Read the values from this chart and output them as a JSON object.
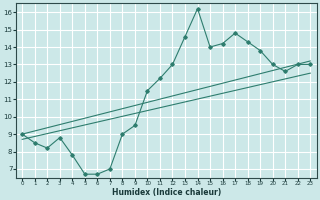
{
  "title": "",
  "xlabel": "Humidex (Indice chaleur)",
  "ylabel": "",
  "background_color": "#cce8e8",
  "grid_color": "#ffffff",
  "line_color": "#2e7d6e",
  "xlim": [
    -0.5,
    23.5
  ],
  "ylim": [
    6.5,
    16.5
  ],
  "xticks": [
    0,
    1,
    2,
    3,
    4,
    5,
    6,
    7,
    8,
    9,
    10,
    11,
    12,
    13,
    14,
    15,
    16,
    17,
    18,
    19,
    20,
    21,
    22,
    23
  ],
  "yticks": [
    7,
    8,
    9,
    10,
    11,
    12,
    13,
    14,
    15,
    16
  ],
  "series1_x": [
    0,
    1,
    2,
    3,
    4,
    5,
    6,
    7,
    8,
    9,
    10,
    11,
    12,
    13,
    14,
    15,
    16,
    17,
    18,
    19,
    20,
    21,
    22,
    23
  ],
  "series1_y": [
    9.0,
    8.5,
    8.2,
    8.8,
    7.8,
    6.7,
    6.7,
    7.0,
    9.0,
    9.5,
    11.5,
    12.2,
    13.0,
    14.6,
    16.2,
    14.0,
    14.2,
    14.8,
    14.3,
    13.8,
    13.0,
    12.6,
    13.0,
    13.0
  ],
  "series2_x": [
    0,
    23
  ],
  "series2_y": [
    9.0,
    13.2
  ],
  "series3_x": [
    0,
    23
  ],
  "series3_y": [
    8.7,
    12.5
  ]
}
